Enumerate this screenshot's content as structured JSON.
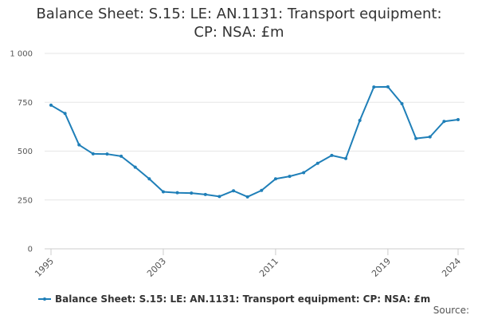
{
  "chart_data": {
    "type": "line",
    "title_lines": [
      "Balance Sheet: S.15: LE: AN.1131: Transport equipment:",
      "CP: NSA: £m"
    ],
    "xlabel": "",
    "ylabel": "",
    "x": [
      1995,
      1996,
      1997,
      1998,
      1999,
      2000,
      2001,
      2002,
      2003,
      2004,
      2005,
      2006,
      2007,
      2008,
      2009,
      2010,
      2011,
      2012,
      2013,
      2014,
      2015,
      2016,
      2017,
      2018,
      2019,
      2020,
      2021,
      2022,
      2023,
      2024
    ],
    "x_tick_labels": [
      "1995",
      "2003",
      "2011",
      "2019",
      "2024"
    ],
    "xlim": [
      1995,
      2024
    ],
    "ylim": [
      0,
      1000
    ],
    "y_ticks": [
      0,
      250,
      500,
      750,
      1000
    ],
    "y_tick_labels": [
      "0",
      "250",
      "500",
      "750",
      "1 000"
    ],
    "grid": true,
    "series": [
      {
        "name": "Balance Sheet: S.15: LE: AN.1131: Transport equipment: CP: NSA: £m",
        "color": "#1f7fb8",
        "values": [
          735,
          693,
          532,
          486,
          485,
          474,
          418,
          358,
          292,
          287,
          285,
          278,
          268,
          297,
          266,
          299,
          358,
          371,
          390,
          438,
          478,
          462,
          657,
          828,
          829,
          743,
          565,
          573,
          652,
          661
        ]
      }
    ],
    "legend_position": "bottom",
    "source_label": "Source:"
  }
}
